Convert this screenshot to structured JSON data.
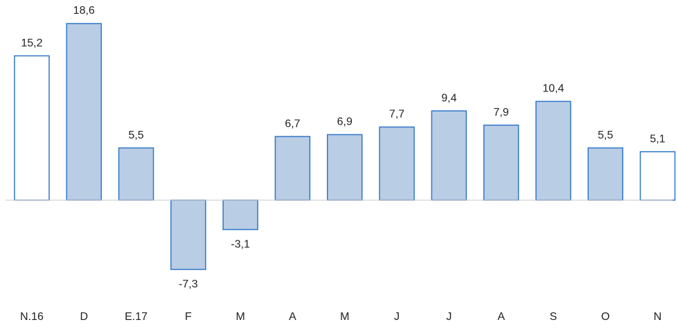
{
  "chart_data": {
    "type": "bar",
    "categories": [
      "N.16",
      "D",
      "E.17",
      "F",
      "M",
      "A",
      "M",
      "J",
      "J",
      "A",
      "S",
      "O",
      "N"
    ],
    "values": [
      15.2,
      18.6,
      5.5,
      -7.3,
      -3.1,
      6.7,
      6.9,
      7.7,
      9.4,
      7.9,
      10.4,
      5.5,
      5.1
    ],
    "value_labels": [
      "15,2",
      "18,6",
      "5,5",
      "-7,3",
      "-3,1",
      "6,7",
      "6,9",
      "7,7",
      "9,4",
      "7,9",
      "10,4",
      "5,5",
      "5,1"
    ],
    "colors": [
      "#ffffff",
      "#b9cde5",
      "#b9cde5",
      "#b9cde5",
      "#b9cde5",
      "#b9cde5",
      "#b9cde5",
      "#b9cde5",
      "#b9cde5",
      "#b9cde5",
      "#b9cde5",
      "#b9cde5",
      "#ffffff"
    ],
    "border_color": "#2e75c6"
  }
}
